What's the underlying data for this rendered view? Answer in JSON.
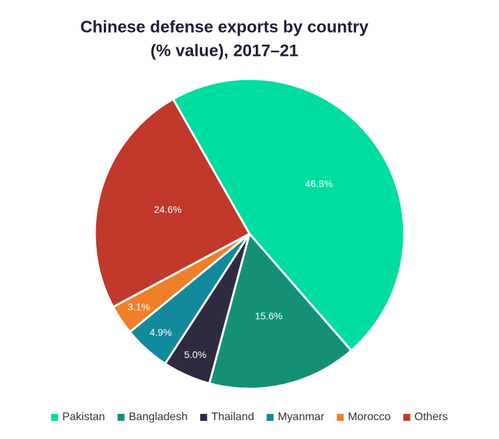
{
  "chart_data": {
    "type": "pie",
    "title": [
      "Chinese defense exports by country",
      "(% value), 2017–21"
    ],
    "categories": [
      "Pakistan",
      "Bangladesh",
      "Thailand",
      "Myanmar",
      "Morocco",
      "Others"
    ],
    "values": [
      46.8,
      15.6,
      5.0,
      4.9,
      3.1,
      24.6
    ],
    "value_labels": [
      "46.8%",
      "15.6%",
      "5.0%",
      "4.9%",
      "3.1%",
      "24.6%"
    ],
    "colors": [
      "#00dda0",
      "#149076",
      "#2e2a40",
      "#138a9c",
      "#f07f29",
      "#c0392b"
    ],
    "legend": "bottom"
  }
}
